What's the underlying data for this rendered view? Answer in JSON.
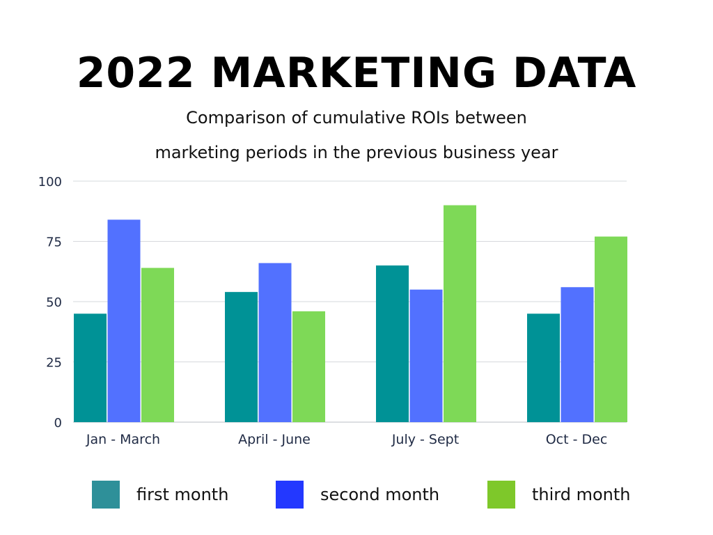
{
  "chart_data": {
    "type": "bar",
    "title": "2022 MARKETING DATA",
    "subtitle_lines": [
      "Comparison of cumulative ROIs between",
      "marketing periods in the previous business year"
    ],
    "categories": [
      "Jan - March",
      "April - June",
      "July - Sept",
      "Oct - Dec"
    ],
    "series": [
      {
        "name": "first month",
        "values": [
          45,
          54,
          65,
          45
        ],
        "color": "#009296",
        "legend_color": "#2e9099"
      },
      {
        "name": "second month",
        "values": [
          84,
          66,
          55,
          56
        ],
        "color": "#5271ff",
        "legend_color": "#2338ff"
      },
      {
        "name": "third month",
        "values": [
          64,
          46,
          90,
          77
        ],
        "color": "#7ed957",
        "legend_color": "#7ec82a"
      }
    ],
    "ylim": [
      0,
      100
    ],
    "yticks": [
      0,
      25,
      50,
      75,
      100
    ],
    "grid": true,
    "legend_position": "bottom"
  }
}
